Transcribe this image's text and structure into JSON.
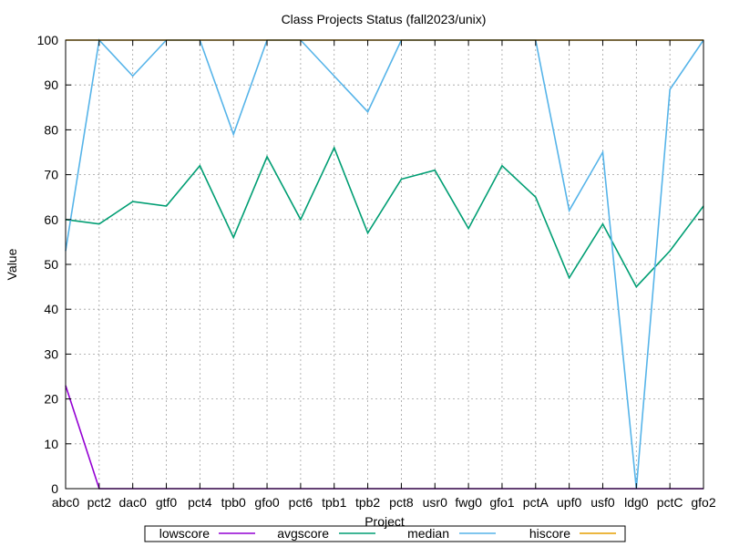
{
  "chart_data": {
    "type": "line",
    "title": "Class Projects Status (fall2023/unix)",
    "xlabel": "Project",
    "ylabel": "Value",
    "ylim": [
      0,
      100
    ],
    "yticks": [
      0,
      10,
      20,
      30,
      40,
      50,
      60,
      70,
      80,
      90,
      100
    ],
    "grid": true,
    "legend_position": "bottom",
    "categories": [
      "abc0",
      "pct2",
      "dac0",
      "gtf0",
      "pct4",
      "tpb0",
      "gfo0",
      "pct6",
      "tpb1",
      "tpb2",
      "pct8",
      "usr0",
      "fwg0",
      "gfo1",
      "pctA",
      "upf0",
      "usf0",
      "ldg0",
      "pctC",
      "gfo2"
    ],
    "series": [
      {
        "name": "lowscore",
        "color": "#9400d3",
        "values": [
          23,
          0,
          0,
          0,
          0,
          0,
          0,
          0,
          0,
          0,
          0,
          0,
          0,
          0,
          0,
          0,
          0,
          0,
          0,
          0
        ]
      },
      {
        "name": "avgscore",
        "color": "#009e73",
        "values": [
          60,
          59,
          64,
          63,
          72,
          56,
          74,
          60,
          76,
          57,
          69,
          71,
          58,
          72,
          65,
          47,
          59,
          45,
          53,
          63
        ]
      },
      {
        "name": "median",
        "color": "#56b4e9",
        "values": [
          53,
          100,
          92,
          100,
          100,
          79,
          100,
          100,
          92,
          84,
          100,
          100,
          100,
          100,
          100,
          62,
          75,
          0,
          89,
          100
        ]
      },
      {
        "name": "hiscore",
        "color": "#e69f00",
        "values": [
          100,
          100,
          100,
          100,
          100,
          100,
          100,
          100,
          100,
          100,
          100,
          100,
          100,
          100,
          100,
          100,
          100,
          100,
          100,
          100
        ]
      }
    ]
  }
}
